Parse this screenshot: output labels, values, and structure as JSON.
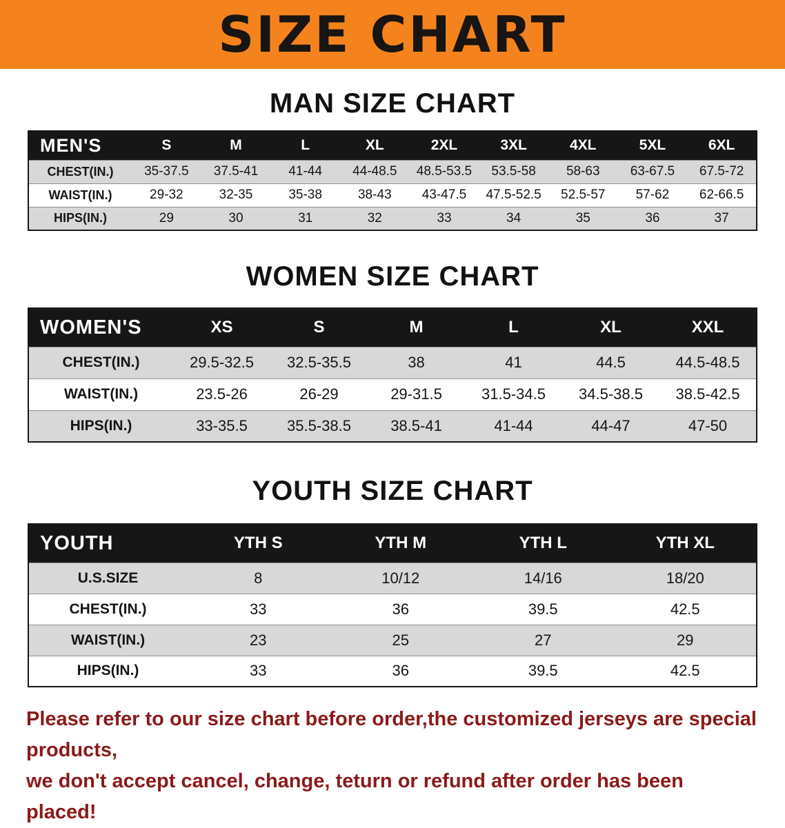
{
  "banner": {
    "title": "SIZE CHART"
  },
  "chart_data": [
    {
      "type": "table",
      "title": "MAN SIZE CHART",
      "header": [
        "MEN'S",
        "S",
        "M",
        "L",
        "XL",
        "2XL",
        "3XL",
        "4XL",
        "5XL",
        "6XL"
      ],
      "rows": [
        [
          "CHEST(IN.)",
          "35-37.5",
          "37.5-41",
          "41-44",
          "44-48.5",
          "48.5-53.5",
          "53.5-58",
          "58-63",
          "63-67.5",
          "67.5-72"
        ],
        [
          "WAIST(IN.)",
          "29-32",
          "32-35",
          "35-38",
          "38-43",
          "43-47.5",
          "47.5-52.5",
          "52.5-57",
          "57-62",
          "62-66.5"
        ],
        [
          "HIPS(IN.)",
          "29",
          "30",
          "31",
          "32",
          "33",
          "34",
          "35",
          "36",
          "37"
        ]
      ]
    },
    {
      "type": "table",
      "title": "WOMEN SIZE CHART",
      "header": [
        "WOMEN'S",
        "XS",
        "S",
        "M",
        "L",
        "XL",
        "XXL"
      ],
      "rows": [
        [
          "CHEST(IN.)",
          "29.5-32.5",
          "32.5-35.5",
          "38",
          "41",
          "44.5",
          "44.5-48.5"
        ],
        [
          "WAIST(IN.)",
          "23.5-26",
          "26-29",
          "29-31.5",
          "31.5-34.5",
          "34.5-38.5",
          "38.5-42.5"
        ],
        [
          "HIPS(IN.)",
          "33-35.5",
          "35.5-38.5",
          "38.5-41",
          "41-44",
          "44-47",
          "47-50"
        ]
      ]
    },
    {
      "type": "table",
      "title": "YOUTH SIZE CHART",
      "header": [
        "YOUTH",
        "YTH S",
        "YTH M",
        "YTH L",
        "YTH XL"
      ],
      "rows": [
        [
          "U.S.SIZE",
          "8",
          "10/12",
          "14/16",
          "18/20"
        ],
        [
          "CHEST(IN.)",
          "33",
          "36",
          "39.5",
          "42.5"
        ],
        [
          "WAIST(IN.)",
          "23",
          "25",
          "27",
          "29"
        ],
        [
          "HIPS(IN.)",
          "33",
          "36",
          "39.5",
          "42.5"
        ]
      ]
    }
  ],
  "footer": {
    "line1": "Please refer to our size chart before order,the customized jerseys are special products,",
    "line2": "we don't accept cancel, change, teturn or refund after order has been placed!"
  },
  "colors": {
    "banner_orange": "#F5831D",
    "table_header_black": "#161616",
    "row_gray": "#D8D8D8",
    "row_white": "#FFFFFF",
    "footer_red": "#8B1A1A"
  }
}
